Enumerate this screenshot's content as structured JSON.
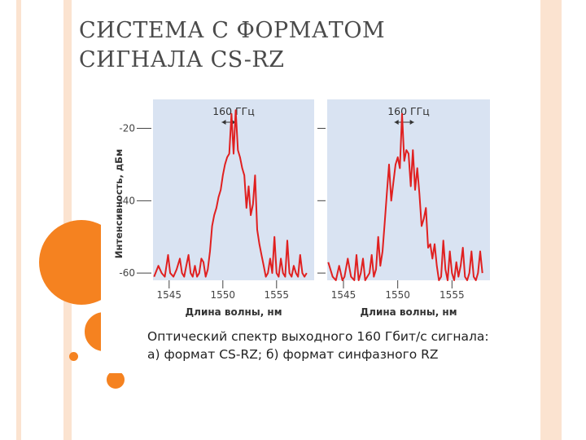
{
  "slide": {
    "title_line1": "СИСТЕМА С ФОРМАТОМ",
    "title_line2": "СИГНАЛА CS-RZ"
  },
  "colors": {
    "accent": "#f58220",
    "stripe_light": "#fbe3d0",
    "plot_background": "#d9e3f2",
    "series_line": "#e02020"
  },
  "figure": {
    "caption_line1": "Оптический спектр выходного 160 Гбит/с сигнала:",
    "caption_line2": "а) формат CS-RZ; б) формат синфазного RZ"
  },
  "chart_data": [
    {
      "type": "line",
      "title": "",
      "xlabel": "Длина волны, нм",
      "ylabel": "Интенсивность, дБм",
      "xlim": [
        1543.5,
        1558.5
      ],
      "ylim": [
        -62,
        -12
      ],
      "xticks": [
        1545,
        1550,
        1555
      ],
      "yticks": [
        -20,
        -40,
        -60
      ],
      "grid": false,
      "annotation": "160 ГГц",
      "series": [
        {
          "x": [
            1543.6,
            1544.0,
            1544.3,
            1544.6,
            1544.9,
            1545.1,
            1545.4,
            1545.7,
            1546.0,
            1546.2,
            1546.4,
            1546.6,
            1546.8,
            1547.0,
            1547.2,
            1547.4,
            1547.6,
            1547.8,
            1548.0,
            1548.2,
            1548.4,
            1548.6,
            1548.8,
            1549.0,
            1549.2,
            1549.4,
            1549.6,
            1549.8,
            1550.0,
            1550.2,
            1550.4,
            1550.6,
            1550.8,
            1551.0,
            1551.2,
            1551.4,
            1551.6,
            1551.8,
            1552.0,
            1552.2,
            1552.4,
            1552.6,
            1552.8,
            1553.0,
            1553.2,
            1553.4,
            1553.6,
            1553.8,
            1554.0,
            1554.2,
            1554.4,
            1554.6,
            1554.8,
            1555.0,
            1555.2,
            1555.4,
            1555.6,
            1555.8,
            1556.0,
            1556.2,
            1556.4,
            1556.6,
            1556.8,
            1557.0,
            1557.2,
            1557.4,
            1557.6,
            1557.8
          ],
          "y": [
            -61,
            -58,
            -60,
            -61,
            -55,
            -60,
            -61,
            -59,
            -56,
            -60,
            -61,
            -58,
            -55,
            -60,
            -61,
            -58,
            -61,
            -60,
            -56,
            -57,
            -61,
            -59,
            -54,
            -47,
            -44,
            -42,
            -39,
            -37,
            -33,
            -30,
            -28,
            -27,
            -16,
            -27,
            -15,
            -26,
            -28,
            -31,
            -33,
            -42,
            -36,
            -44,
            -41,
            -33,
            -48,
            -52,
            -55,
            -58,
            -61,
            -60,
            -56,
            -60,
            -50,
            -60,
            -61,
            -56,
            -60,
            -61,
            -51,
            -60,
            -61,
            -58,
            -60,
            -61,
            -55,
            -60,
            -61,
            -60
          ]
        },
        {
          "x": [
            1543.6,
            1544.0,
            1544.3,
            1544.6,
            1544.9,
            1545.1,
            1545.4,
            1545.7,
            1546.0,
            1546.2,
            1546.4,
            1546.6,
            1546.8,
            1547.0,
            1547.2,
            1547.4,
            1547.6,
            1547.8,
            1548.0,
            1548.2,
            1548.4,
            1548.6,
            1548.8,
            1549.0,
            1549.2,
            1549.4,
            1549.6,
            1549.8,
            1550.0,
            1550.2,
            1550.4,
            1550.6,
            1550.8,
            1551.0,
            1551.2,
            1551.4,
            1551.6,
            1551.8,
            1552.0,
            1552.2,
            1552.4,
            1552.6,
            1552.8,
            1553.0,
            1553.2,
            1553.4,
            1553.6,
            1553.8,
            1554.0,
            1554.2,
            1554.4,
            1554.6,
            1554.8,
            1555.0,
            1555.2,
            1555.4,
            1555.6,
            1555.8,
            1556.0,
            1556.2,
            1556.4,
            1556.6,
            1556.8,
            1557.0,
            1557.2,
            1557.4,
            1557.6,
            1557.8
          ],
          "y": [
            -57,
            -61,
            -62,
            -58,
            -62,
            -61,
            -56,
            -61,
            -62,
            -55,
            -62,
            -60,
            -56,
            -62,
            -61,
            -60,
            -55,
            -61,
            -59,
            -50,
            -58,
            -54,
            -46,
            -38,
            -30,
            -40,
            -35,
            -30,
            -28,
            -31,
            -16,
            -29,
            -26,
            -27,
            -36,
            -26,
            -37,
            -31,
            -38,
            -47,
            -45,
            -42,
            -53,
            -52,
            -56,
            -52,
            -58,
            -62,
            -61,
            -51,
            -59,
            -62,
            -54,
            -60,
            -62,
            -57,
            -61,
            -58,
            -53,
            -61,
            -62,
            -60,
            -54,
            -61,
            -62,
            -60,
            -54,
            -60
          ]
        }
      ]
    }
  ]
}
